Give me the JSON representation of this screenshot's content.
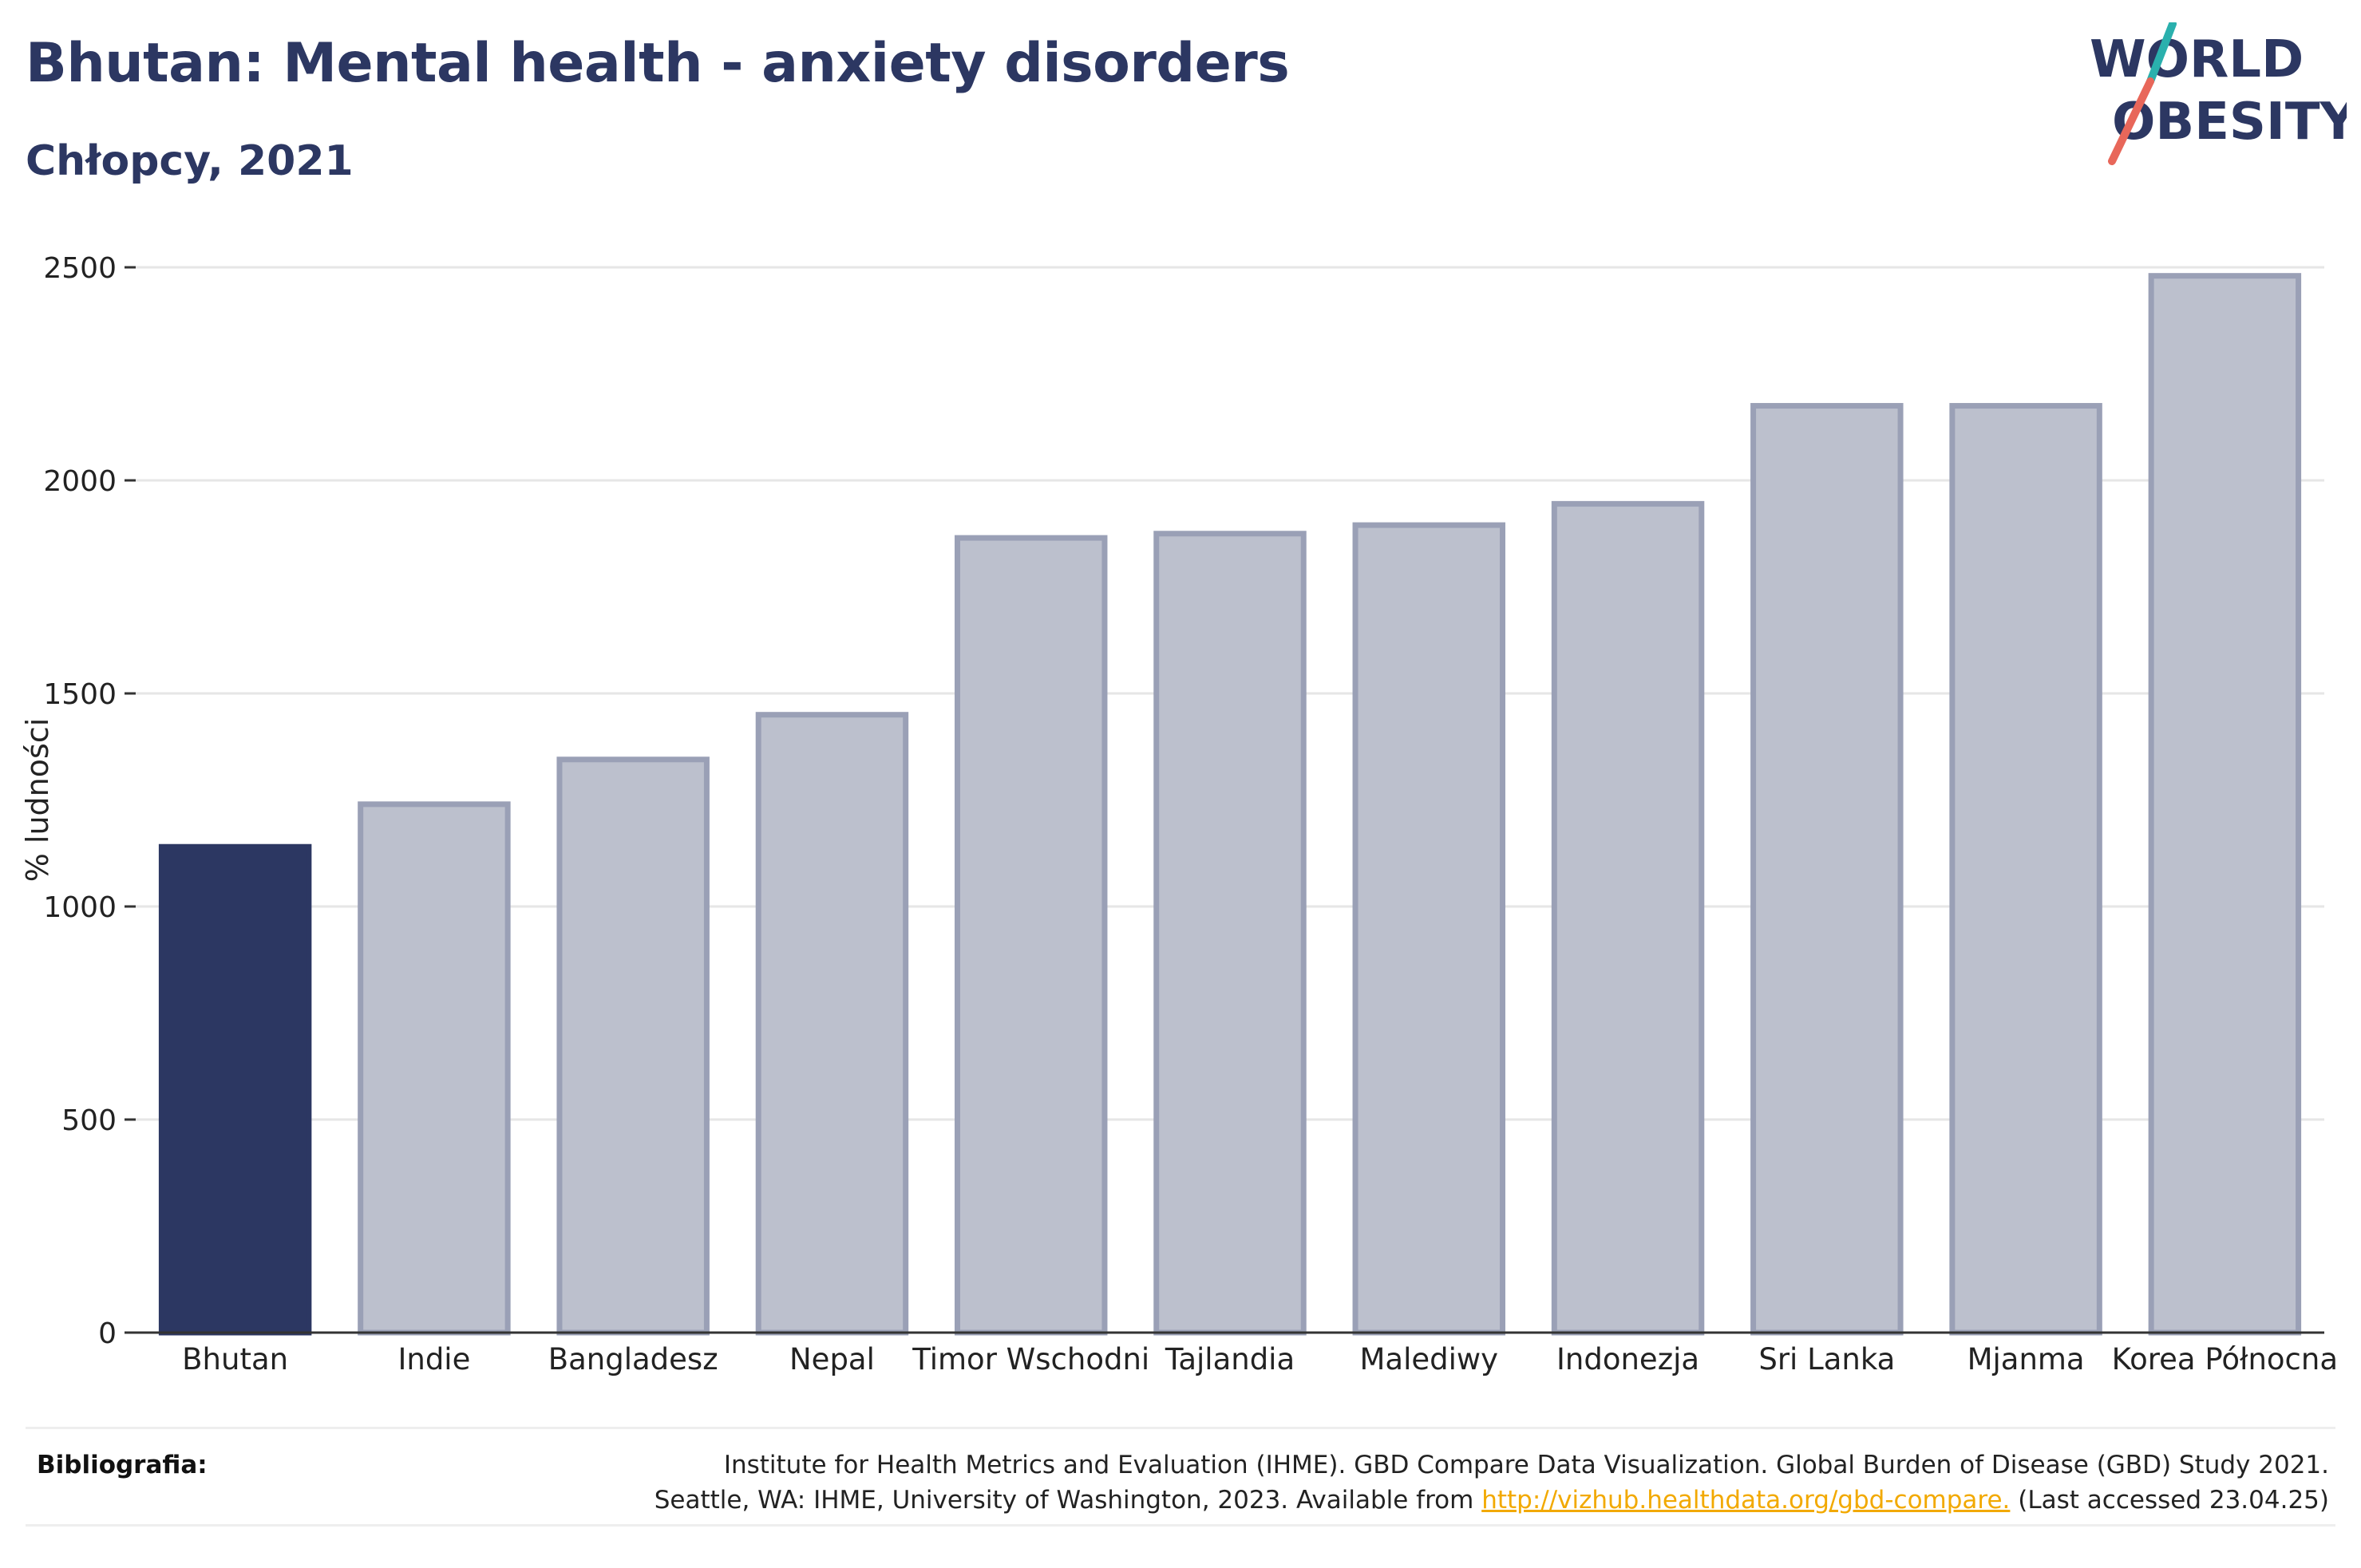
{
  "header": {
    "title": "Bhutan: Mental health - anxiety disorders",
    "subtitle": "Chłopcy, 2021"
  },
  "logo": {
    "line1": "WORLD",
    "line2": "OBESITY",
    "colors": {
      "text": "#2c3762",
      "slash_top": "#2ab0ad",
      "slash_bottom": "#e8675a"
    }
  },
  "colors": {
    "highlight_bar": "#2c3762",
    "other_bar_fill": "#bcc0cd",
    "other_bar_stroke": "#9aa0b6",
    "grid": "#e6e6e6",
    "axis": "#333333"
  },
  "chart_data": {
    "type": "bar",
    "title": "Bhutan: Mental health - anxiety disorders",
    "subtitle": "Chłopcy, 2021",
    "xlabel": "",
    "ylabel": "% ludności",
    "ylim": [
      0,
      2500
    ],
    "yticks": [
      0,
      500,
      1000,
      1500,
      2000,
      2500
    ],
    "grid": true,
    "highlight": "Bhutan",
    "categories": [
      "Bhutan",
      "Indie",
      "Bangladesz",
      "Nepal",
      "Timor Wschodni",
      "Tajlandia",
      "Malediwy",
      "Indonezja",
      "Sri Lanka",
      "Mjanma",
      "Korea Północna"
    ],
    "values": [
      1140,
      1240,
      1345,
      1450,
      1865,
      1875,
      1895,
      1945,
      2175,
      2175,
      2480
    ]
  },
  "footer": {
    "label": "Bibliografia:",
    "line1": "Institute for Health Metrics and Evaluation (IHME). GBD Compare Data Visualization. Global Burden of Disease (GBD) Study 2021.",
    "line2_prefix": "Seattle, WA: IHME, University of Washington, 2023. Available from ",
    "link": "http://vizhub.healthdata.org/gbd-compare.",
    "line2_suffix": " (Last accessed 23.04.25)"
  }
}
